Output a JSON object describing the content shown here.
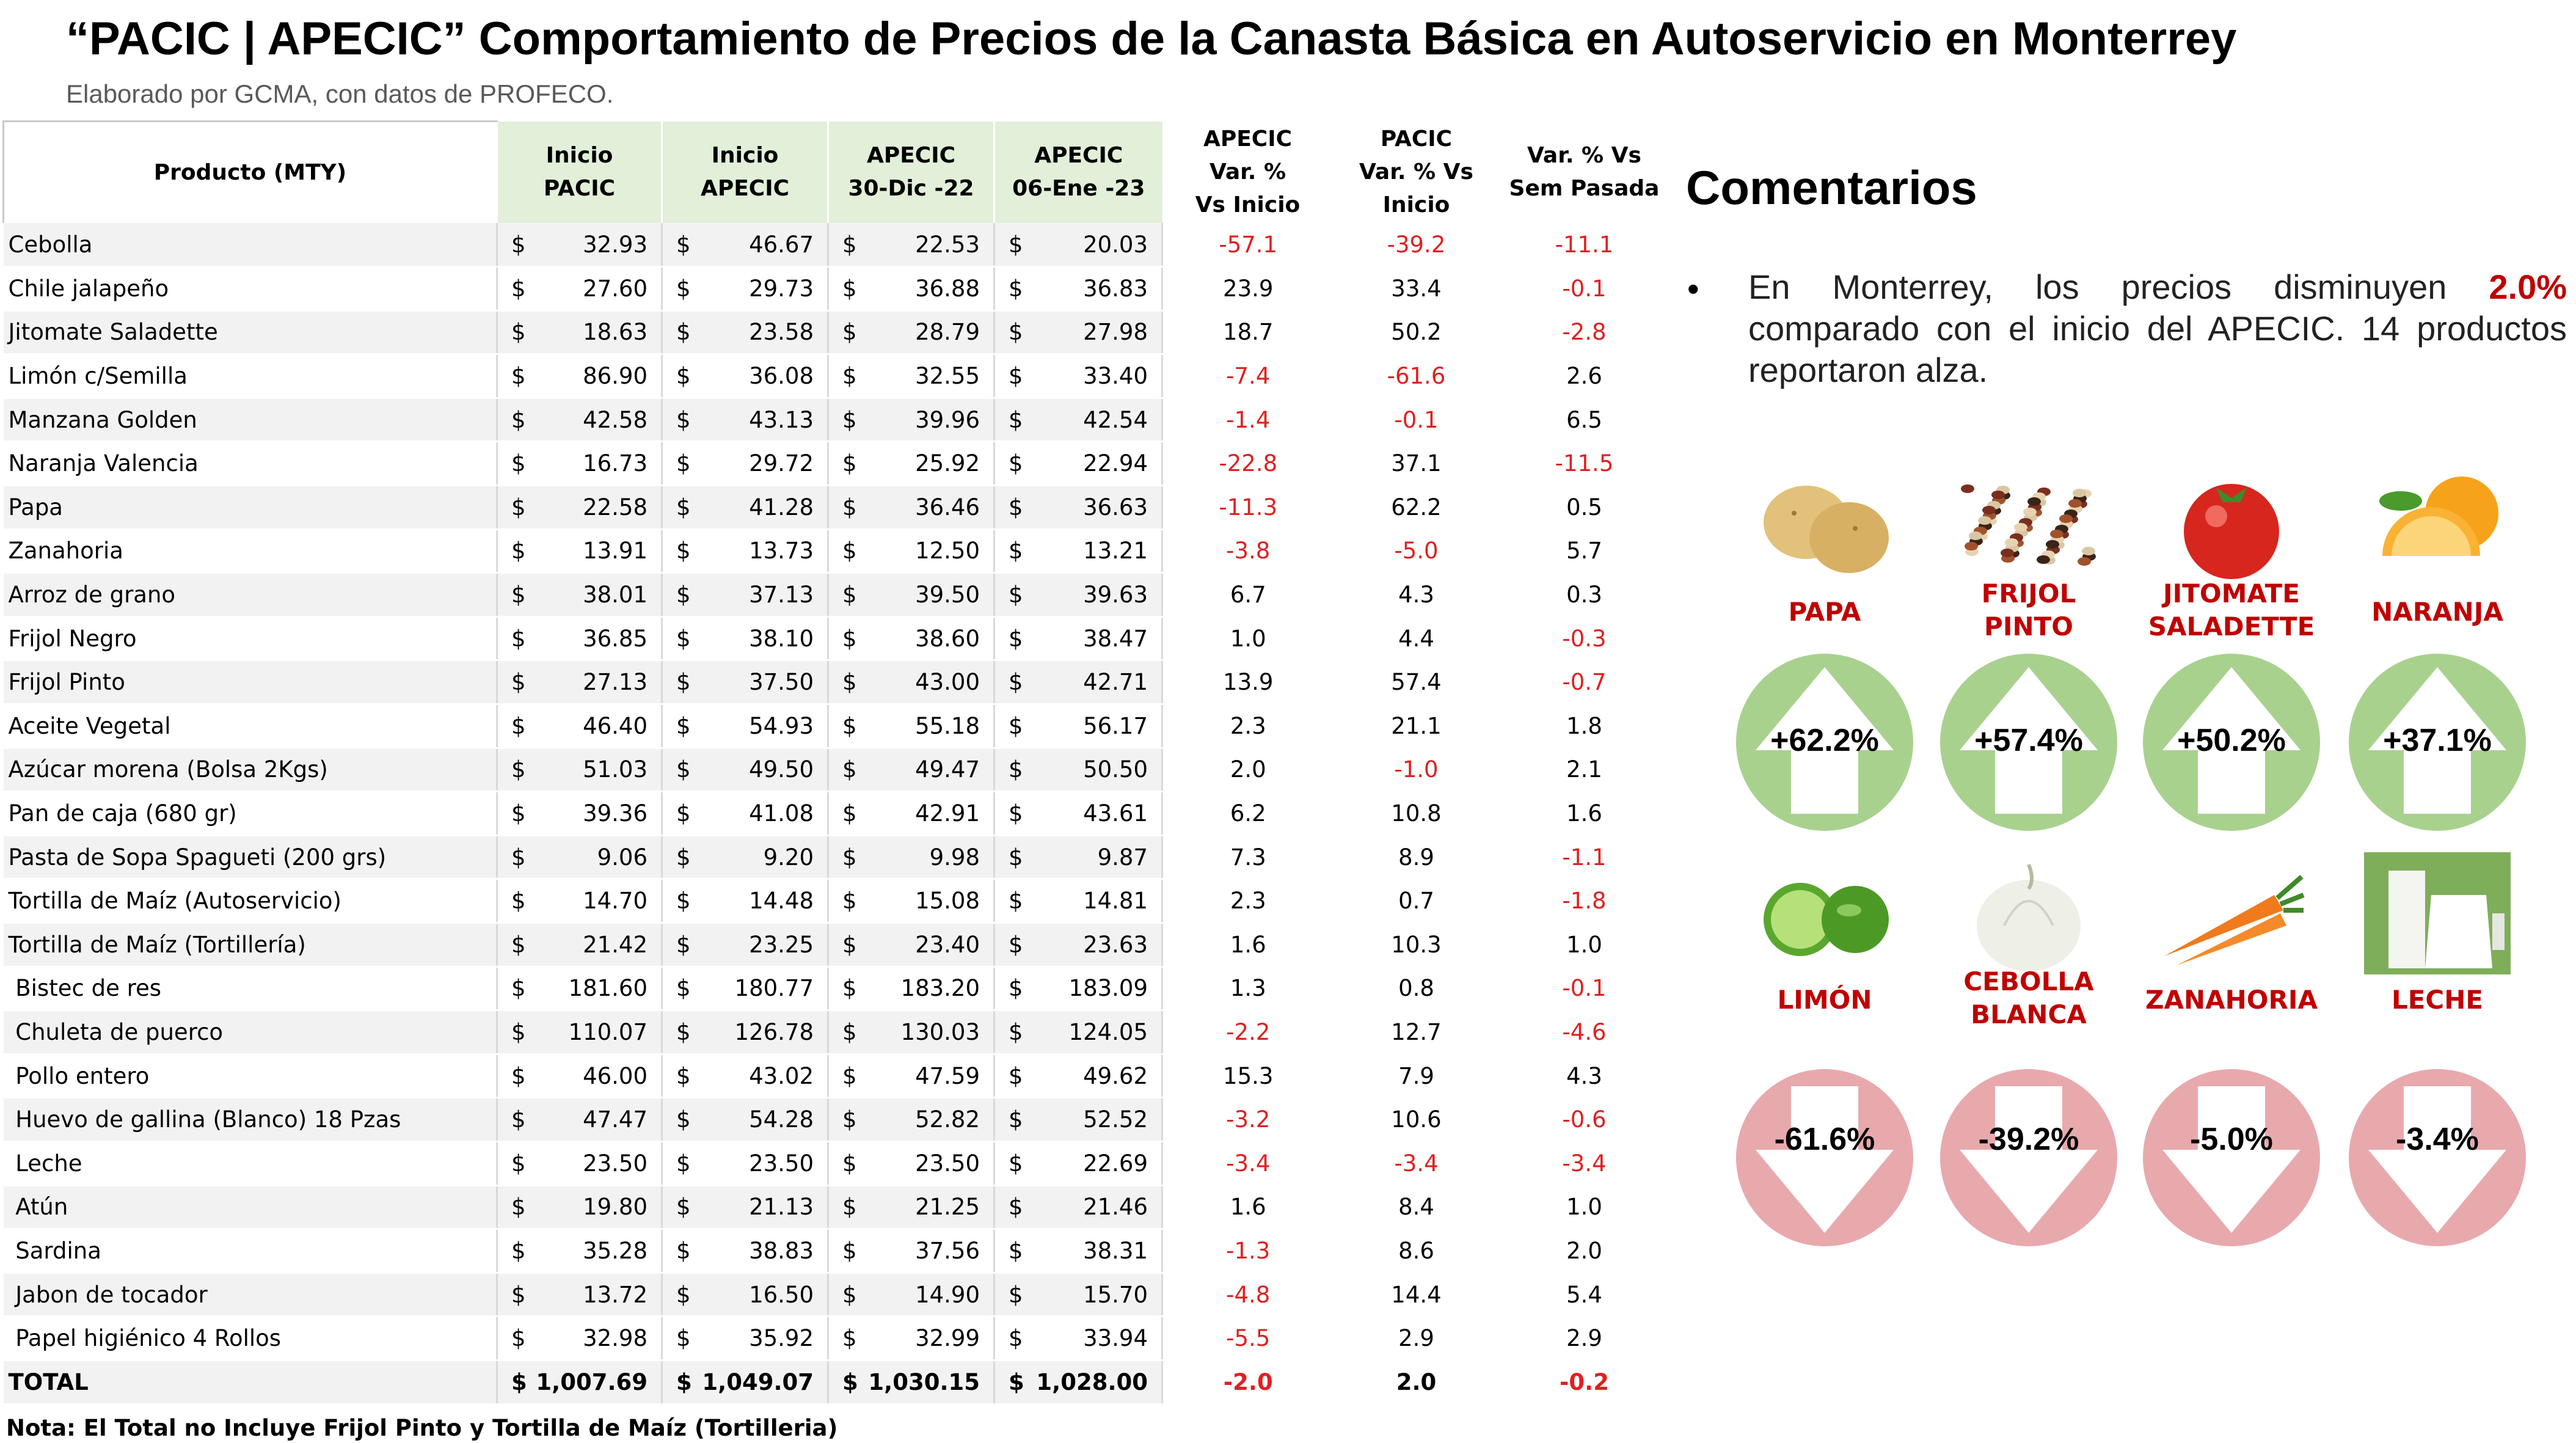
{
  "title": "“PACIC | APECIC” Comportamiento de Precios de la Canasta Básica en Autoservicio en Monterrey",
  "subtitle": "Elaborado por GCMA, con datos de PROFECO.",
  "table": {
    "headers": {
      "product": "Producto (MTY)",
      "inicio_pacic_1": "Inicio",
      "inicio_pacic_2": "PACIC",
      "inicio_apecic_1": "Inicio",
      "inicio_apecic_2": "APECIC",
      "apecic_dic_1": "APECIC",
      "apecic_dic_2": "30-Dic -22",
      "apecic_ene_1": "APECIC",
      "apecic_ene_2": "06-Ene -23",
      "var_apecic_1": "APECIC",
      "var_apecic_2": "Var. %",
      "var_apecic_3": "Vs  Inicio",
      "var_pacic_1": "PACIC",
      "var_pacic_2": "Var. % Vs",
      "var_pacic_3": "Inicio",
      "var_sem_1": "Var. % Vs",
      "var_sem_2": "Sem Pasada"
    },
    "currency": "$",
    "rows": [
      {
        "product": "Cebolla",
        "inicio_pacic": "32.93",
        "inicio_apecic": "46.67",
        "apecic_dic": "22.53",
        "apecic_ene": "20.03",
        "var_apecic": "-57.1",
        "var_pacic": "-39.2",
        "var_sem": "-11.1"
      },
      {
        "product": "Chile jalapeño",
        "inicio_pacic": "27.60",
        "inicio_apecic": "29.73",
        "apecic_dic": "36.88",
        "apecic_ene": "36.83",
        "var_apecic": "23.9",
        "var_pacic": "33.4",
        "var_sem": "-0.1"
      },
      {
        "product": "Jitomate Saladette",
        "inicio_pacic": "18.63",
        "inicio_apecic": "23.58",
        "apecic_dic": "28.79",
        "apecic_ene": "27.98",
        "var_apecic": "18.7",
        "var_pacic": "50.2",
        "var_sem": "-2.8"
      },
      {
        "product": "Limón c/Semilla",
        "inicio_pacic": "86.90",
        "inicio_apecic": "36.08",
        "apecic_dic": "32.55",
        "apecic_ene": "33.40",
        "var_apecic": "-7.4",
        "var_pacic": "-61.6",
        "var_sem": "2.6"
      },
      {
        "product": "Manzana Golden",
        "inicio_pacic": "42.58",
        "inicio_apecic": "43.13",
        "apecic_dic": "39.96",
        "apecic_ene": "42.54",
        "var_apecic": "-1.4",
        "var_pacic": "-0.1",
        "var_sem": "6.5"
      },
      {
        "product": "Naranja Valencia",
        "inicio_pacic": "16.73",
        "inicio_apecic": "29.72",
        "apecic_dic": "25.92",
        "apecic_ene": "22.94",
        "var_apecic": "-22.8",
        "var_pacic": "37.1",
        "var_sem": "-11.5"
      },
      {
        "product": "Papa",
        "inicio_pacic": "22.58",
        "inicio_apecic": "41.28",
        "apecic_dic": "36.46",
        "apecic_ene": "36.63",
        "var_apecic": "-11.3",
        "var_pacic": "62.2",
        "var_sem": "0.5"
      },
      {
        "product": "Zanahoria",
        "inicio_pacic": "13.91",
        "inicio_apecic": "13.73",
        "apecic_dic": "12.50",
        "apecic_ene": "13.21",
        "var_apecic": "-3.8",
        "var_pacic": "-5.0",
        "var_sem": "5.7"
      },
      {
        "product": "Arroz de grano",
        "inicio_pacic": "38.01",
        "inicio_apecic": "37.13",
        "apecic_dic": "39.50",
        "apecic_ene": "39.63",
        "var_apecic": "6.7",
        "var_pacic": "4.3",
        "var_sem": "0.3"
      },
      {
        "product": "Frijol Negro",
        "inicio_pacic": "36.85",
        "inicio_apecic": "38.10",
        "apecic_dic": "38.60",
        "apecic_ene": "38.47",
        "var_apecic": "1.0",
        "var_pacic": "4.4",
        "var_sem": "-0.3"
      },
      {
        "product": "Frijol Pinto",
        "inicio_pacic": "27.13",
        "inicio_apecic": "37.50",
        "apecic_dic": "43.00",
        "apecic_ene": "42.71",
        "var_apecic": "13.9",
        "var_pacic": "57.4",
        "var_sem": "-0.7"
      },
      {
        "product": "Aceite Vegetal",
        "inicio_pacic": "46.40",
        "inicio_apecic": "54.93",
        "apecic_dic": "55.18",
        "apecic_ene": "56.17",
        "var_apecic": "2.3",
        "var_pacic": "21.1",
        "var_sem": "1.8"
      },
      {
        "product": "Azúcar morena (Bolsa 2Kgs)",
        "inicio_pacic": "51.03",
        "inicio_apecic": "49.50",
        "apecic_dic": "49.47",
        "apecic_ene": "50.50",
        "var_apecic": "2.0",
        "var_pacic": "-1.0",
        "var_sem": "2.1"
      },
      {
        "product": "Pan de caja (680 gr)",
        "inicio_pacic": "39.36",
        "inicio_apecic": "41.08",
        "apecic_dic": "42.91",
        "apecic_ene": "43.61",
        "var_apecic": "6.2",
        "var_pacic": "10.8",
        "var_sem": "1.6"
      },
      {
        "product": "Pasta de Sopa Spagueti (200 grs)",
        "inicio_pacic": "9.06",
        "inicio_apecic": "9.20",
        "apecic_dic": "9.98",
        "apecic_ene": "9.87",
        "var_apecic": "7.3",
        "var_pacic": "8.9",
        "var_sem": "-1.1"
      },
      {
        "product": "Tortilla de Maíz (Autoservicio)",
        "inicio_pacic": "14.70",
        "inicio_apecic": "14.48",
        "apecic_dic": "15.08",
        "apecic_ene": "14.81",
        "var_apecic": "2.3",
        "var_pacic": "0.7",
        "var_sem": "-1.8"
      },
      {
        "product": "Tortilla de Maíz (Tortillería)",
        "inicio_pacic": "21.42",
        "inicio_apecic": "23.25",
        "apecic_dic": "23.40",
        "apecic_ene": "23.63",
        "var_apecic": "1.6",
        "var_pacic": "10.3",
        "var_sem": "1.0"
      },
      {
        "product": " Bistec de res",
        "inicio_pacic": "181.60",
        "inicio_apecic": "180.77",
        "apecic_dic": "183.20",
        "apecic_ene": "183.09",
        "var_apecic": "1.3",
        "var_pacic": "0.8",
        "var_sem": "-0.1"
      },
      {
        "product": " Chuleta de puerco",
        "inicio_pacic": "110.07",
        "inicio_apecic": "126.78",
        "apecic_dic": "130.03",
        "apecic_ene": "124.05",
        "var_apecic": "-2.2",
        "var_pacic": "12.7",
        "var_sem": "-4.6"
      },
      {
        "product": " Pollo entero",
        "inicio_pacic": "46.00",
        "inicio_apecic": "43.02",
        "apecic_dic": "47.59",
        "apecic_ene": "49.62",
        "var_apecic": "15.3",
        "var_pacic": "7.9",
        "var_sem": "4.3"
      },
      {
        "product": " Huevo de gallina (Blanco) 18 Pzas",
        "inicio_pacic": "47.47",
        "inicio_apecic": "54.28",
        "apecic_dic": "52.82",
        "apecic_ene": "52.52",
        "var_apecic": "-3.2",
        "var_pacic": "10.6",
        "var_sem": "-0.6"
      },
      {
        "product": " Leche",
        "inicio_pacic": "23.50",
        "inicio_apecic": "23.50",
        "apecic_dic": "23.50",
        "apecic_ene": "22.69",
        "var_apecic": "-3.4",
        "var_pacic": "-3.4",
        "var_sem": "-3.4"
      },
      {
        "product": " Atún",
        "inicio_pacic": "19.80",
        "inicio_apecic": "21.13",
        "apecic_dic": "21.25",
        "apecic_ene": "21.46",
        "var_apecic": "1.6",
        "var_pacic": "8.4",
        "var_sem": "1.0"
      },
      {
        "product": " Sardina",
        "inicio_pacic": "35.28",
        "inicio_apecic": "38.83",
        "apecic_dic": "37.56",
        "apecic_ene": "38.31",
        "var_apecic": "-1.3",
        "var_pacic": "8.6",
        "var_sem": "2.0"
      },
      {
        "product": " Jabon de tocador",
        "inicio_pacic": "13.72",
        "inicio_apecic": "16.50",
        "apecic_dic": "14.90",
        "apecic_ene": "15.70",
        "var_apecic": "-4.8",
        "var_pacic": "14.4",
        "var_sem": "5.4"
      },
      {
        "product": " Papel higiénico 4 Rollos",
        "inicio_pacic": "32.98",
        "inicio_apecic": "35.92",
        "apecic_dic": "32.99",
        "apecic_ene": "33.94",
        "var_apecic": "-5.5",
        "var_pacic": "2.9",
        "var_sem": "2.9"
      }
    ],
    "total": {
      "product": "TOTAL",
      "inicio_pacic": "1,007.69",
      "inicio_apecic": "1,049.07",
      "apecic_dic": "1,030.15",
      "apecic_ene": "1,028.00",
      "var_apecic": "-2.0",
      "var_pacic": "2.0",
      "var_sem": "-0.2"
    }
  },
  "note": "Nota: El Total no Incluye Frijol Pinto y Tortilla de Maíz (Tortilleria)",
  "comments": {
    "title": "Comentarios",
    "bullet": "•",
    "text_before": "En Monterrey, los precios disminuyen ",
    "highlight": "2.0%",
    "text_after": " comparado con el inicio del APECIC. 14 productos reportaron alza."
  },
  "increases": [
    {
      "label1": "PAPA",
      "label2": "",
      "pct": "+62.2%",
      "icon": "potato-icon"
    },
    {
      "label1": "FRIJOL",
      "label2": "PINTO",
      "pct": "+57.4%",
      "icon": "beans-icon"
    },
    {
      "label1": "JITOMATE",
      "label2": "SALADETTE",
      "pct": "+50.2%",
      "icon": "tomato-icon"
    },
    {
      "label1": "NARANJA",
      "label2": "",
      "pct": "+37.1%",
      "icon": "orange-icon"
    }
  ],
  "decreases": [
    {
      "label1": "LIMÓN",
      "label2": "",
      "pct": "-61.6%",
      "icon": "lime-icon"
    },
    {
      "label1": "CEBOLLA",
      "label2": "BLANCA",
      "pct": "-39.2%",
      "icon": "onion-icon"
    },
    {
      "label1": "ZANAHORIA",
      "label2": "",
      "pct": "-5.0%",
      "icon": "carrot-icon"
    },
    {
      "label1": "LECHE",
      "label2": "",
      "pct": "-3.4%",
      "icon": "milk-icon"
    }
  ],
  "colors": {
    "header_green": "#e2efd9",
    "negative_red": "#e02020",
    "label_red": "#c00000",
    "up_green": "#a9d18e",
    "down_pink": "#e8a9ad"
  }
}
